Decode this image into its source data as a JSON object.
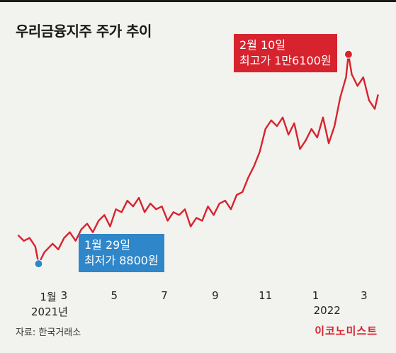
{
  "title": "우리금융지주 주가 추이",
  "source": "자료: 한국거래소",
  "brand": "이코노미스트",
  "annotations": {
    "high": {
      "date": "2월 10일",
      "text": "최고가 1만6100원"
    },
    "low": {
      "date": "1월 29일",
      "text": "최저가 8800원"
    }
  },
  "colors": {
    "line": "#d7232e",
    "high": "#d7232e",
    "low": "#2f86c9",
    "background": "#f2f2ee"
  },
  "chart_data": {
    "type": "line",
    "title": "우리금융지주 주가 추이",
    "x_ticks": [
      "1월",
      "3",
      "5",
      "7",
      "9",
      "11",
      "1",
      "3"
    ],
    "x_year_labels": [
      "2021년",
      "2022"
    ],
    "y_unit": "원",
    "ylim": [
      7000,
      17500
    ],
    "grid": false,
    "legend": "none",
    "series": [
      {
        "x": [
          "2021-01-04",
          "2021-01-11",
          "2021-01-18",
          "2021-01-25",
          "2021-01-29",
          "2021-02-05",
          "2021-02-15",
          "2021-02-22",
          "2021-03-01",
          "2021-03-08",
          "2021-03-15",
          "2021-03-22",
          "2021-03-29",
          "2021-04-05",
          "2021-04-12",
          "2021-04-19",
          "2021-04-26",
          "2021-05-03",
          "2021-05-10",
          "2021-05-17",
          "2021-05-24",
          "2021-05-31",
          "2021-06-07",
          "2021-06-14",
          "2021-06-21",
          "2021-06-28",
          "2021-07-05",
          "2021-07-12",
          "2021-07-19",
          "2021-07-26",
          "2021-08-02",
          "2021-08-09",
          "2021-08-16",
          "2021-08-23",
          "2021-08-30",
          "2021-09-06",
          "2021-09-13",
          "2021-09-20",
          "2021-09-27",
          "2021-10-04",
          "2021-10-11",
          "2021-10-18",
          "2021-10-25",
          "2021-11-01",
          "2021-11-08",
          "2021-11-15",
          "2021-11-22",
          "2021-11-29",
          "2021-12-06",
          "2021-12-13",
          "2021-12-20",
          "2021-12-27",
          "2022-01-03",
          "2022-01-10",
          "2022-01-17",
          "2022-01-24",
          "2022-01-31",
          "2022-02-07",
          "2022-02-10",
          "2022-02-14",
          "2022-02-21",
          "2022-02-28",
          "2022-03-07",
          "2022-03-14",
          "2022-03-18"
        ],
        "y": [
          9800,
          9600,
          9700,
          9400,
          8800,
          9200,
          9500,
          9300,
          9700,
          9900,
          9600,
          10000,
          10200,
          9900,
          10300,
          10500,
          10100,
          10700,
          10600,
          11000,
          10800,
          11100,
          10600,
          10900,
          10700,
          10800,
          10300,
          10600,
          10500,
          10700,
          10100,
          10400,
          10300,
          10800,
          10500,
          10900,
          11000,
          10700,
          11200,
          11300,
          11800,
          12200,
          12700,
          13500,
          13800,
          13600,
          13900,
          13300,
          13700,
          12800,
          13100,
          13500,
          13200,
          13900,
          13000,
          13600,
          14600,
          15300,
          16100,
          15400,
          15000,
          15300,
          14500,
          14200,
          14700
        ]
      }
    ]
  }
}
